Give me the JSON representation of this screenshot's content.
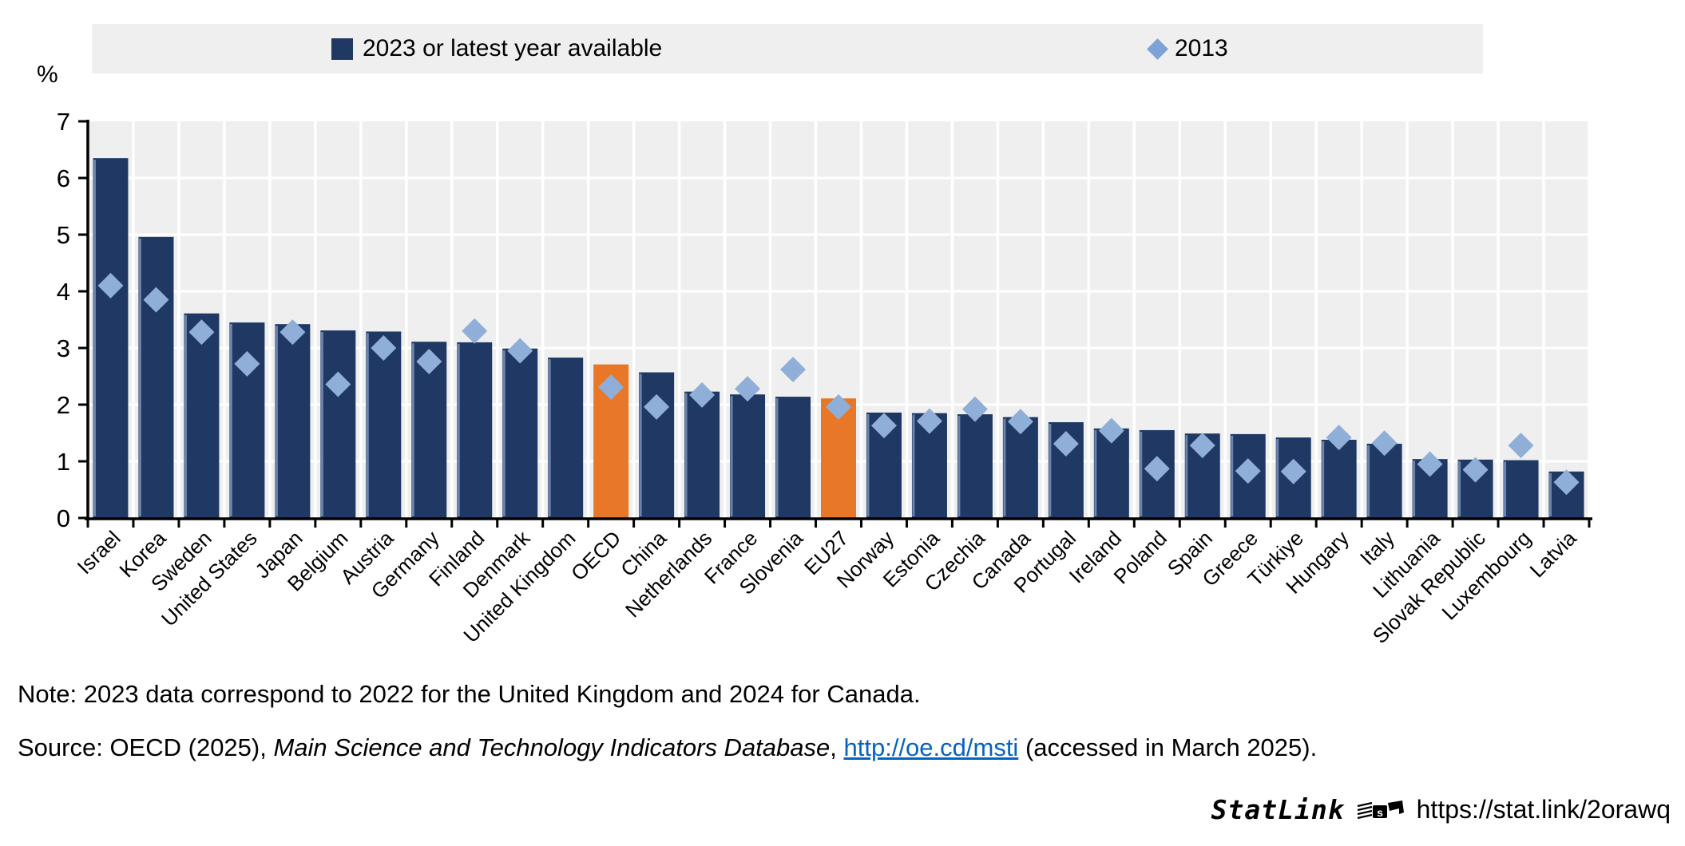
{
  "legend": {
    "series1_label": "2023 or latest year available",
    "series2_label": "2013"
  },
  "axis": {
    "unit_label": "%",
    "yticks": [
      0,
      1,
      2,
      3,
      4,
      5,
      6,
      7
    ],
    "ymax": 7
  },
  "chart_data": {
    "type": "bar",
    "title": "",
    "xlabel": "",
    "ylabel": "%",
    "ylim": [
      0,
      7
    ],
    "grid": true,
    "legend_position": "top",
    "categories": [
      "Israel",
      "Korea",
      "Sweden",
      "United States",
      "Japan",
      "Belgium",
      "Austria",
      "Germany",
      "Finland",
      "Denmark",
      "United Kingdom",
      "OECD",
      "China",
      "Netherlands",
      "France",
      "Slovenia",
      "EU27",
      "Norway",
      "Estonia",
      "Czechia",
      "Canada",
      "Portugal",
      "Ireland",
      "Poland",
      "Spain",
      "Greece",
      "Türkiye",
      "Hungary",
      "Italy",
      "Lithuania",
      "Slovak Republic",
      "Luxembourg",
      "Latvia"
    ],
    "series": [
      {
        "name": "2023 or latest year available",
        "type": "bar",
        "values": [
          6.35,
          4.96,
          3.61,
          3.45,
          3.42,
          3.31,
          3.29,
          3.11,
          3.1,
          2.99,
          2.83,
          2.71,
          2.57,
          2.23,
          2.18,
          2.14,
          2.11,
          1.86,
          1.85,
          1.83,
          1.78,
          1.69,
          1.58,
          1.55,
          1.49,
          1.48,
          1.42,
          1.38,
          1.31,
          1.04,
          1.03,
          1.02,
          0.82
        ]
      },
      {
        "name": "2013",
        "type": "scatter",
        "marker": "diamond",
        "values": [
          4.1,
          3.85,
          3.28,
          2.72,
          3.28,
          2.36,
          3.0,
          2.76,
          3.3,
          2.95,
          null,
          2.31,
          1.96,
          2.17,
          2.28,
          2.62,
          1.96,
          1.63,
          1.71,
          1.92,
          1.7,
          1.31,
          1.54,
          0.87,
          1.28,
          0.83,
          0.82,
          1.42,
          1.32,
          0.95,
          0.85,
          1.28,
          0.63
        ]
      }
    ],
    "highlighted_categories": [
      "OECD",
      "EU27"
    ]
  },
  "colors": {
    "bar": "#1f3864",
    "bar_highlight": "#e87728",
    "bar_edge_stripe": "#93aed3",
    "marker": "#8fafd8",
    "plot_bg": "#efefef",
    "gridline": "#ffffff",
    "axis": "#000000",
    "link": "#0563c1"
  },
  "footer": {
    "note": "Note: 2023 data correspond to 2022 for the United Kingdom and 2024 for Canada.",
    "source_prefix": "Source: OECD (2025), ",
    "source_title": "Main Science and Technology Indicators Database",
    "source_mid": ", ",
    "source_link": "http://oe.cd/msti",
    "source_suffix": " (accessed in March 2025).",
    "statlink_brand": "StatLink",
    "statlink_url": "https://stat.link/2orawq"
  }
}
